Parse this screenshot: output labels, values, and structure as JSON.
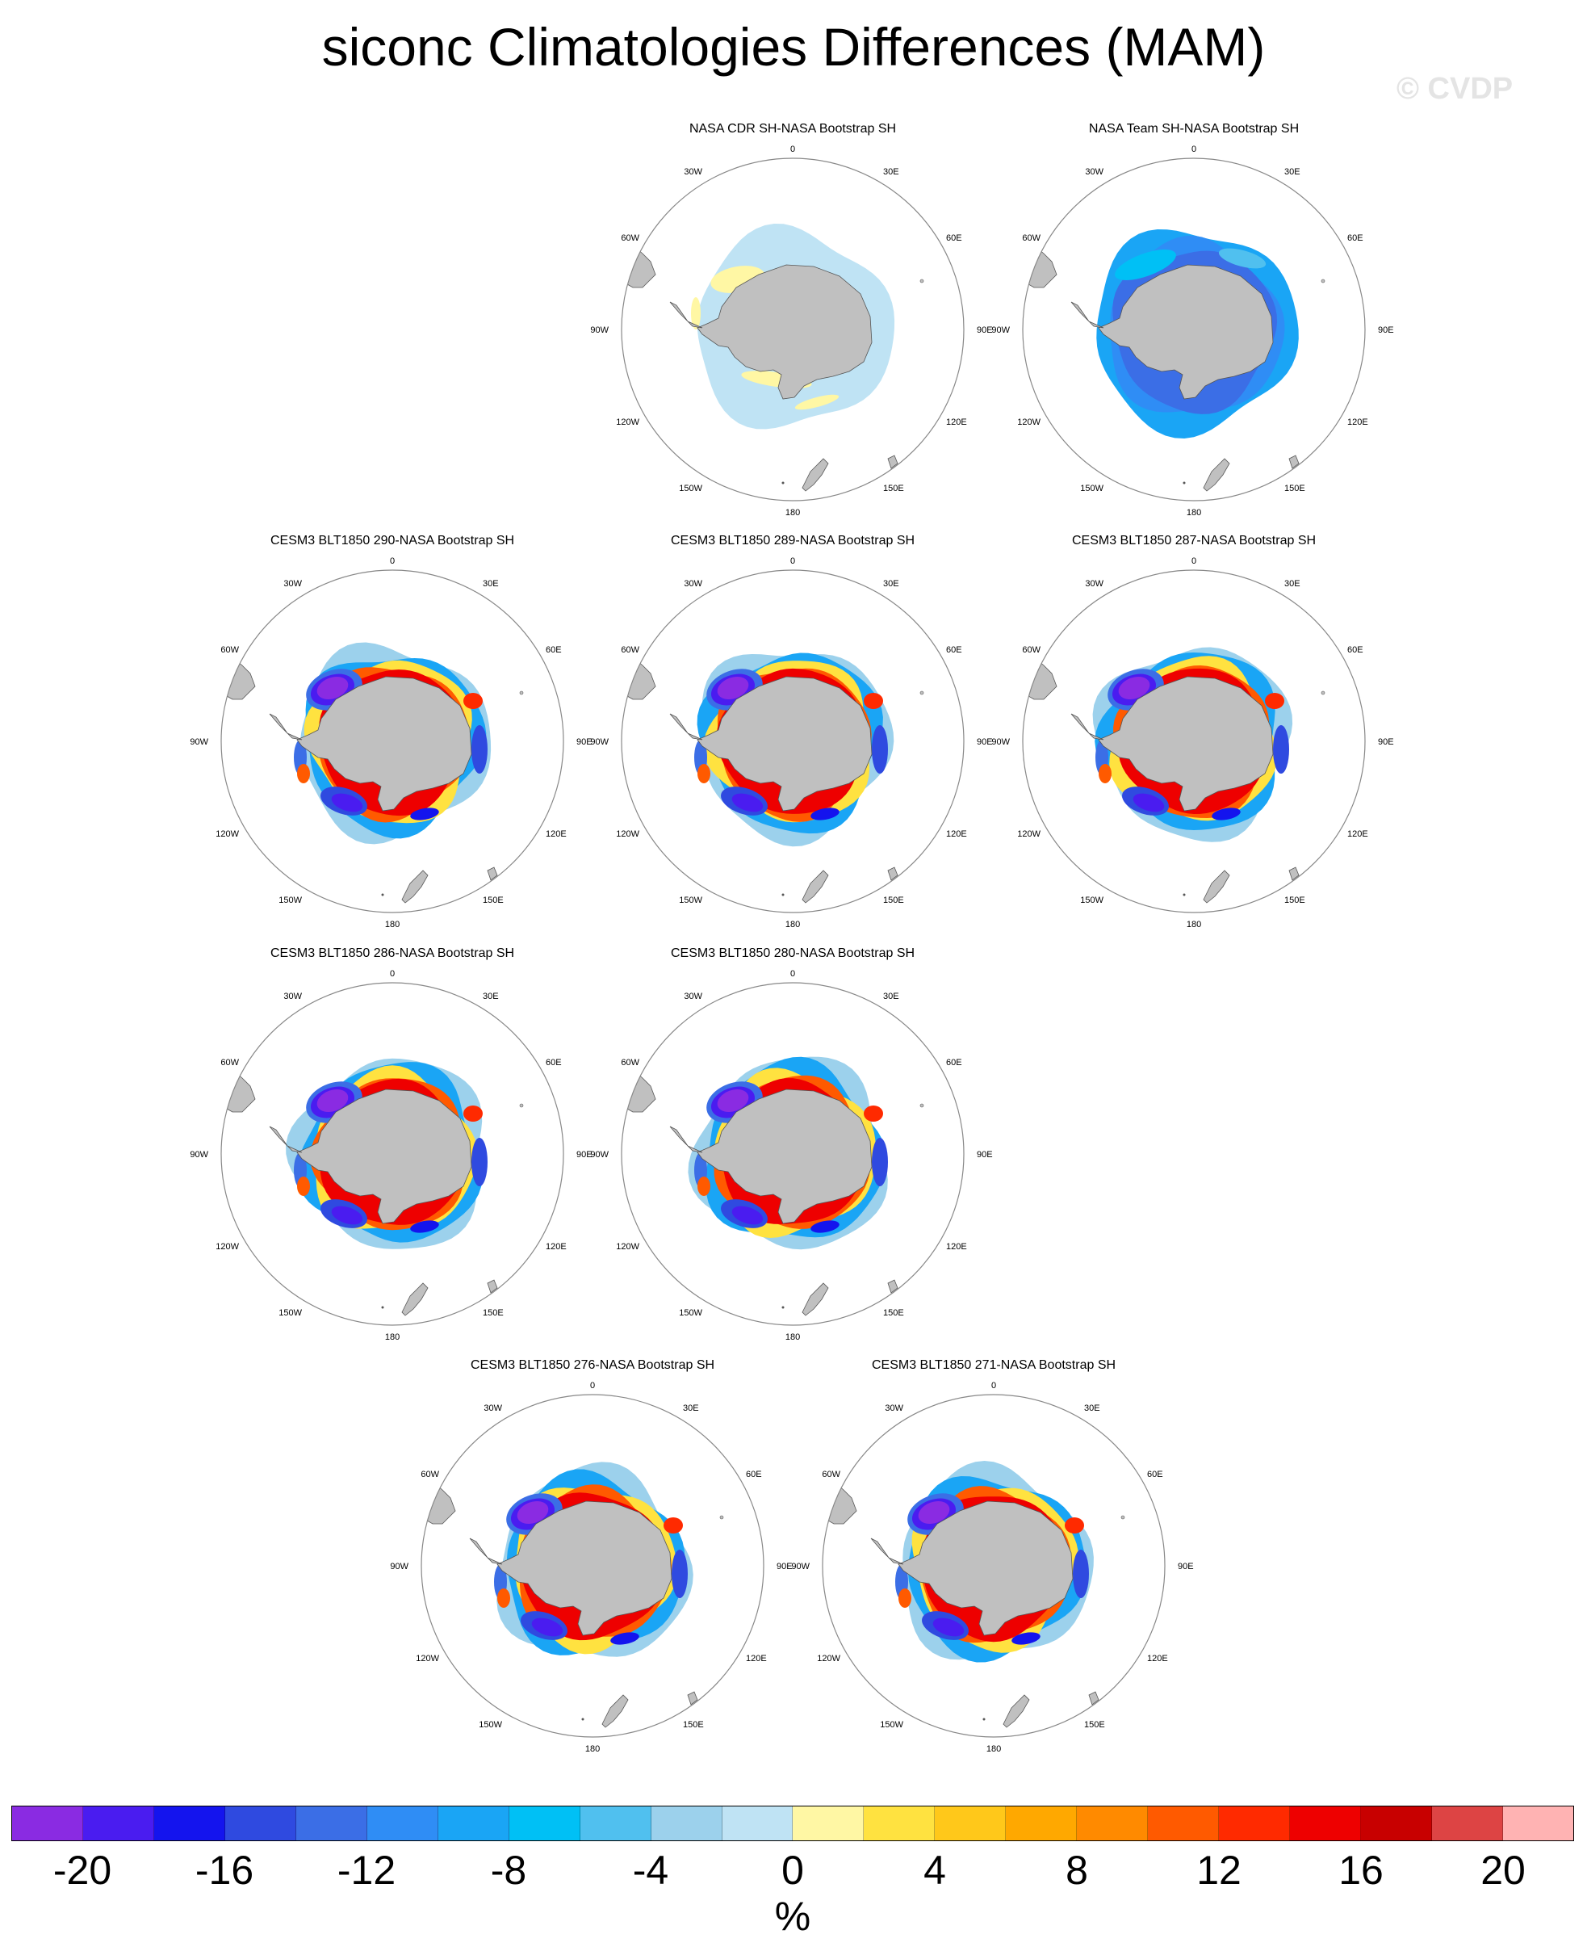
{
  "title": "siconc Climatologies Differences (MAM)",
  "watermark": "© CVDP",
  "map_labels": {
    "top": "0",
    "bottom": "180",
    "left": "90W",
    "right": "90E",
    "top_left": "30W",
    "top_right": "30E",
    "upper_left": "60W",
    "upper_right": "60E",
    "lower_left": "120W",
    "lower_right": "120E",
    "bottom_left": "150W",
    "bottom_right": "150E"
  },
  "panels": [
    {
      "title": "NASA CDR SH-NASA Bootstrap SH",
      "pattern": "cdr"
    },
    {
      "title": "NASA Team SH-NASA Bootstrap SH",
      "pattern": "team"
    },
    {
      "title": "CESM3 BLT1850 290-NASA Bootstrap SH",
      "pattern": "model"
    },
    {
      "title": "CESM3 BLT1850 289-NASA Bootstrap SH",
      "pattern": "model"
    },
    {
      "title": "CESM3 BLT1850 287-NASA Bootstrap SH",
      "pattern": "model"
    },
    {
      "title": "CESM3 BLT1850 286-NASA Bootstrap SH",
      "pattern": "model"
    },
    {
      "title": "CESM3 BLT1850 280-NASA Bootstrap SH",
      "pattern": "model"
    },
    {
      "title": "CESM3 BLT1850 276-NASA Bootstrap SH",
      "pattern": "model"
    },
    {
      "title": "CESM3 BLT1850 271-NASA Bootstrap SH",
      "pattern": "model"
    }
  ],
  "colorbar": {
    "colors": [
      "#8a2be2",
      "#4a1cf0",
      "#1414ee",
      "#2f4ae0",
      "#3b6ee6",
      "#2f8df5",
      "#1aa5f5",
      "#00c0f5",
      "#50c0ef",
      "#9cd1ec",
      "#bfe3f4",
      "#fff7a4",
      "#ffe240",
      "#ffc81a",
      "#ffa800",
      "#ff8a00",
      "#ff5a00",
      "#ff2a00",
      "#ee0000",
      "#c80000",
      "#dd4444",
      "#ffb3b3"
    ],
    "labels": [
      "-20",
      "-16",
      "-12",
      "-8",
      "-4",
      "0",
      "4",
      "8",
      "12",
      "16",
      "20"
    ],
    "units": "%"
  },
  "colors": {
    "land": "#c0c0c0",
    "circle": "#888888"
  }
}
